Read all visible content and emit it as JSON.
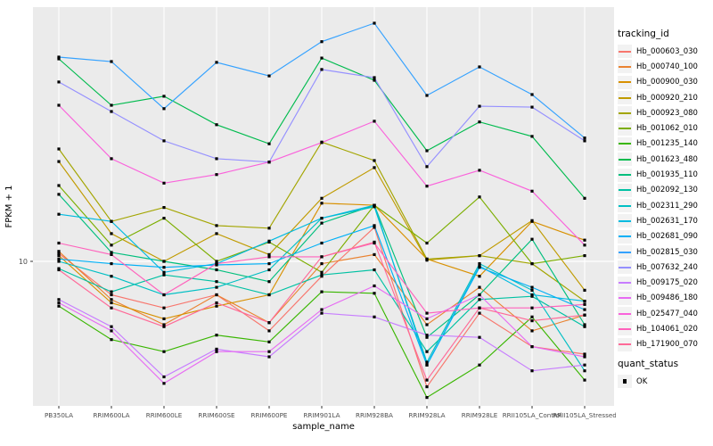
{
  "chart_data": {
    "type": "line",
    "title": "",
    "xlabel": "sample_name",
    "ylabel": "FPKM + 1",
    "y_scale": "log10",
    "y_tick_labels": [
      "10"
    ],
    "y_tick_values": [
      10
    ],
    "grid": "major-white-on-gray",
    "panel_bg": "#EBEBEB",
    "gridline_color": "#FFFFFF",
    "point_marker": "black-square",
    "legend_position": "right",
    "categories": [
      "PB350LA",
      "RRIM600LA",
      "RRIM600LE",
      "RRIM600SE",
      "RRIM600PE",
      "RRIM901LA",
      "RRIM928BA",
      "RRIM928LA",
      "RRIM928LE",
      "RRII105LA_Control",
      "RRII105LA_Stressed"
    ],
    "series": [
      {
        "name": "Hb_000603_030",
        "color": "#F8766D",
        "values": [
          10.7,
          7.5,
          6.7,
          7.5,
          5.5,
          8.8,
          13.4,
          3.4,
          6.4,
          4.8,
          4.5
        ]
      },
      {
        "name": "Hb_000740_100",
        "color": "#EA8331",
        "values": [
          10.9,
          7.2,
          5.8,
          7.5,
          5.9,
          9.8,
          10.6,
          5.8,
          8.0,
          5.5,
          6.3
        ]
      },
      {
        "name": "Hb_000900_030",
        "color": "#D89000",
        "values": [
          10.5,
          7.0,
          6.1,
          6.8,
          7.5,
          16.5,
          16.2,
          10.2,
          8.8,
          14.1,
          12.0
        ]
      },
      {
        "name": "Hb_000920_210",
        "color": "#C09B00",
        "values": [
          23.6,
          12.7,
          10.0,
          12.7,
          10.6,
          17.2,
          22.4,
          10.1,
          10.5,
          14.2,
          7.8
        ]
      },
      {
        "name": "Hb_000923_080",
        "color": "#A3A500",
        "values": [
          26.3,
          14.1,
          15.9,
          13.6,
          13.3,
          27.9,
          23.8,
          10.2,
          10.5,
          9.8,
          7.1
        ]
      },
      {
        "name": "Hb_001062_010",
        "color": "#7CAE00",
        "values": [
          19.2,
          11.5,
          14.5,
          10.0,
          11.8,
          9.1,
          16.2,
          11.7,
          17.4,
          9.8,
          10.5
        ]
      },
      {
        "name": "Hb_001235_140",
        "color": "#39B600",
        "values": [
          6.8,
          5.1,
          4.6,
          5.3,
          5.0,
          7.7,
          7.6,
          3.1,
          4.1,
          6.2,
          3.6
        ]
      },
      {
        "name": "Hb_001623_480",
        "color": "#00BB4E",
        "values": [
          57.1,
          38.3,
          41.4,
          32.4,
          27.5,
          57.5,
          47.5,
          25.9,
          33.2,
          29.3,
          17.2
        ]
      },
      {
        "name": "Hb_001935_110",
        "color": "#00BF7D",
        "values": [
          17.8,
          10.8,
          10.0,
          9.3,
          8.4,
          13.9,
          16.2,
          5.2,
          7.5,
          12.1,
          5.8
        ]
      },
      {
        "name": "Hb_002092_130",
        "color": "#00C1A3",
        "values": [
          9.4,
          7.7,
          8.9,
          8.4,
          7.5,
          8.9,
          9.3,
          4.6,
          7.2,
          7.4,
          5.7
        ]
      },
      {
        "name": "Hb_002311_290",
        "color": "#00BFC4",
        "values": [
          10.0,
          8.8,
          7.5,
          8.0,
          9.3,
          14.5,
          16.0,
          4.2,
          9.8,
          7.8,
          3.9
        ]
      },
      {
        "name": "Hb_002631_170",
        "color": "#00BAE0",
        "values": [
          15.0,
          14.1,
          9.1,
          9.8,
          11.9,
          14.5,
          16.2,
          4.1,
          9.6,
          7.5,
          7.1
        ]
      },
      {
        "name": "Hb_002681_090",
        "color": "#00B0F6",
        "values": [
          10.2,
          9.8,
          9.5,
          9.7,
          9.8,
          11.7,
          13.6,
          4.1,
          9.5,
          8.0,
          6.6
        ]
      },
      {
        "name": "Hb_002815_030",
        "color": "#35A2FF",
        "values": [
          58.0,
          55.8,
          37.2,
          55.4,
          49.3,
          66.2,
          77.6,
          41.7,
          53.3,
          42.0,
          28.9
        ]
      },
      {
        "name": "Hb_007632_240",
        "color": "#9590FF",
        "values": [
          46.8,
          36.3,
          28.2,
          24.2,
          23.5,
          52.1,
          48.6,
          22.6,
          38.0,
          37.7,
          28.2
        ]
      },
      {
        "name": "Hb_009175_020",
        "color": "#C77CFF",
        "values": [
          7.2,
          5.7,
          3.7,
          4.7,
          4.4,
          6.4,
          6.2,
          5.3,
          5.2,
          3.9,
          4.1
        ]
      },
      {
        "name": "Hb_009486_180",
        "color": "#E76BF3",
        "values": [
          7.0,
          5.5,
          3.5,
          4.6,
          4.6,
          6.6,
          8.1,
          6.1,
          7.5,
          4.8,
          4.4
        ]
      },
      {
        "name": "Hb_025477_040",
        "color": "#FA62DB",
        "values": [
          38.3,
          24.2,
          19.6,
          21.1,
          23.5,
          27.8,
          33.4,
          19.1,
          21.9,
          18.3,
          11.5
        ]
      },
      {
        "name": "Hb_104061_020",
        "color": "#FF62BC",
        "values": [
          11.7,
          10.6,
          7.5,
          9.8,
          10.4,
          10.4,
          11.7,
          6.4,
          6.7,
          6.7,
          6.9
        ]
      },
      {
        "name": "Hb_171900_070",
        "color": "#FF6A98",
        "values": [
          9.3,
          6.7,
          5.7,
          7.0,
          5.9,
          10.4,
          11.8,
          3.6,
          6.7,
          6.0,
          6.3
        ]
      }
    ]
  },
  "legend": {
    "tracking_title": "tracking_id",
    "quant_title": "quant_status",
    "quant_items": [
      {
        "label": "OK",
        "marker": "black-square"
      }
    ]
  },
  "text_colors": {
    "tick_label": "#4D4D4D",
    "axis_title": "#000000"
  }
}
